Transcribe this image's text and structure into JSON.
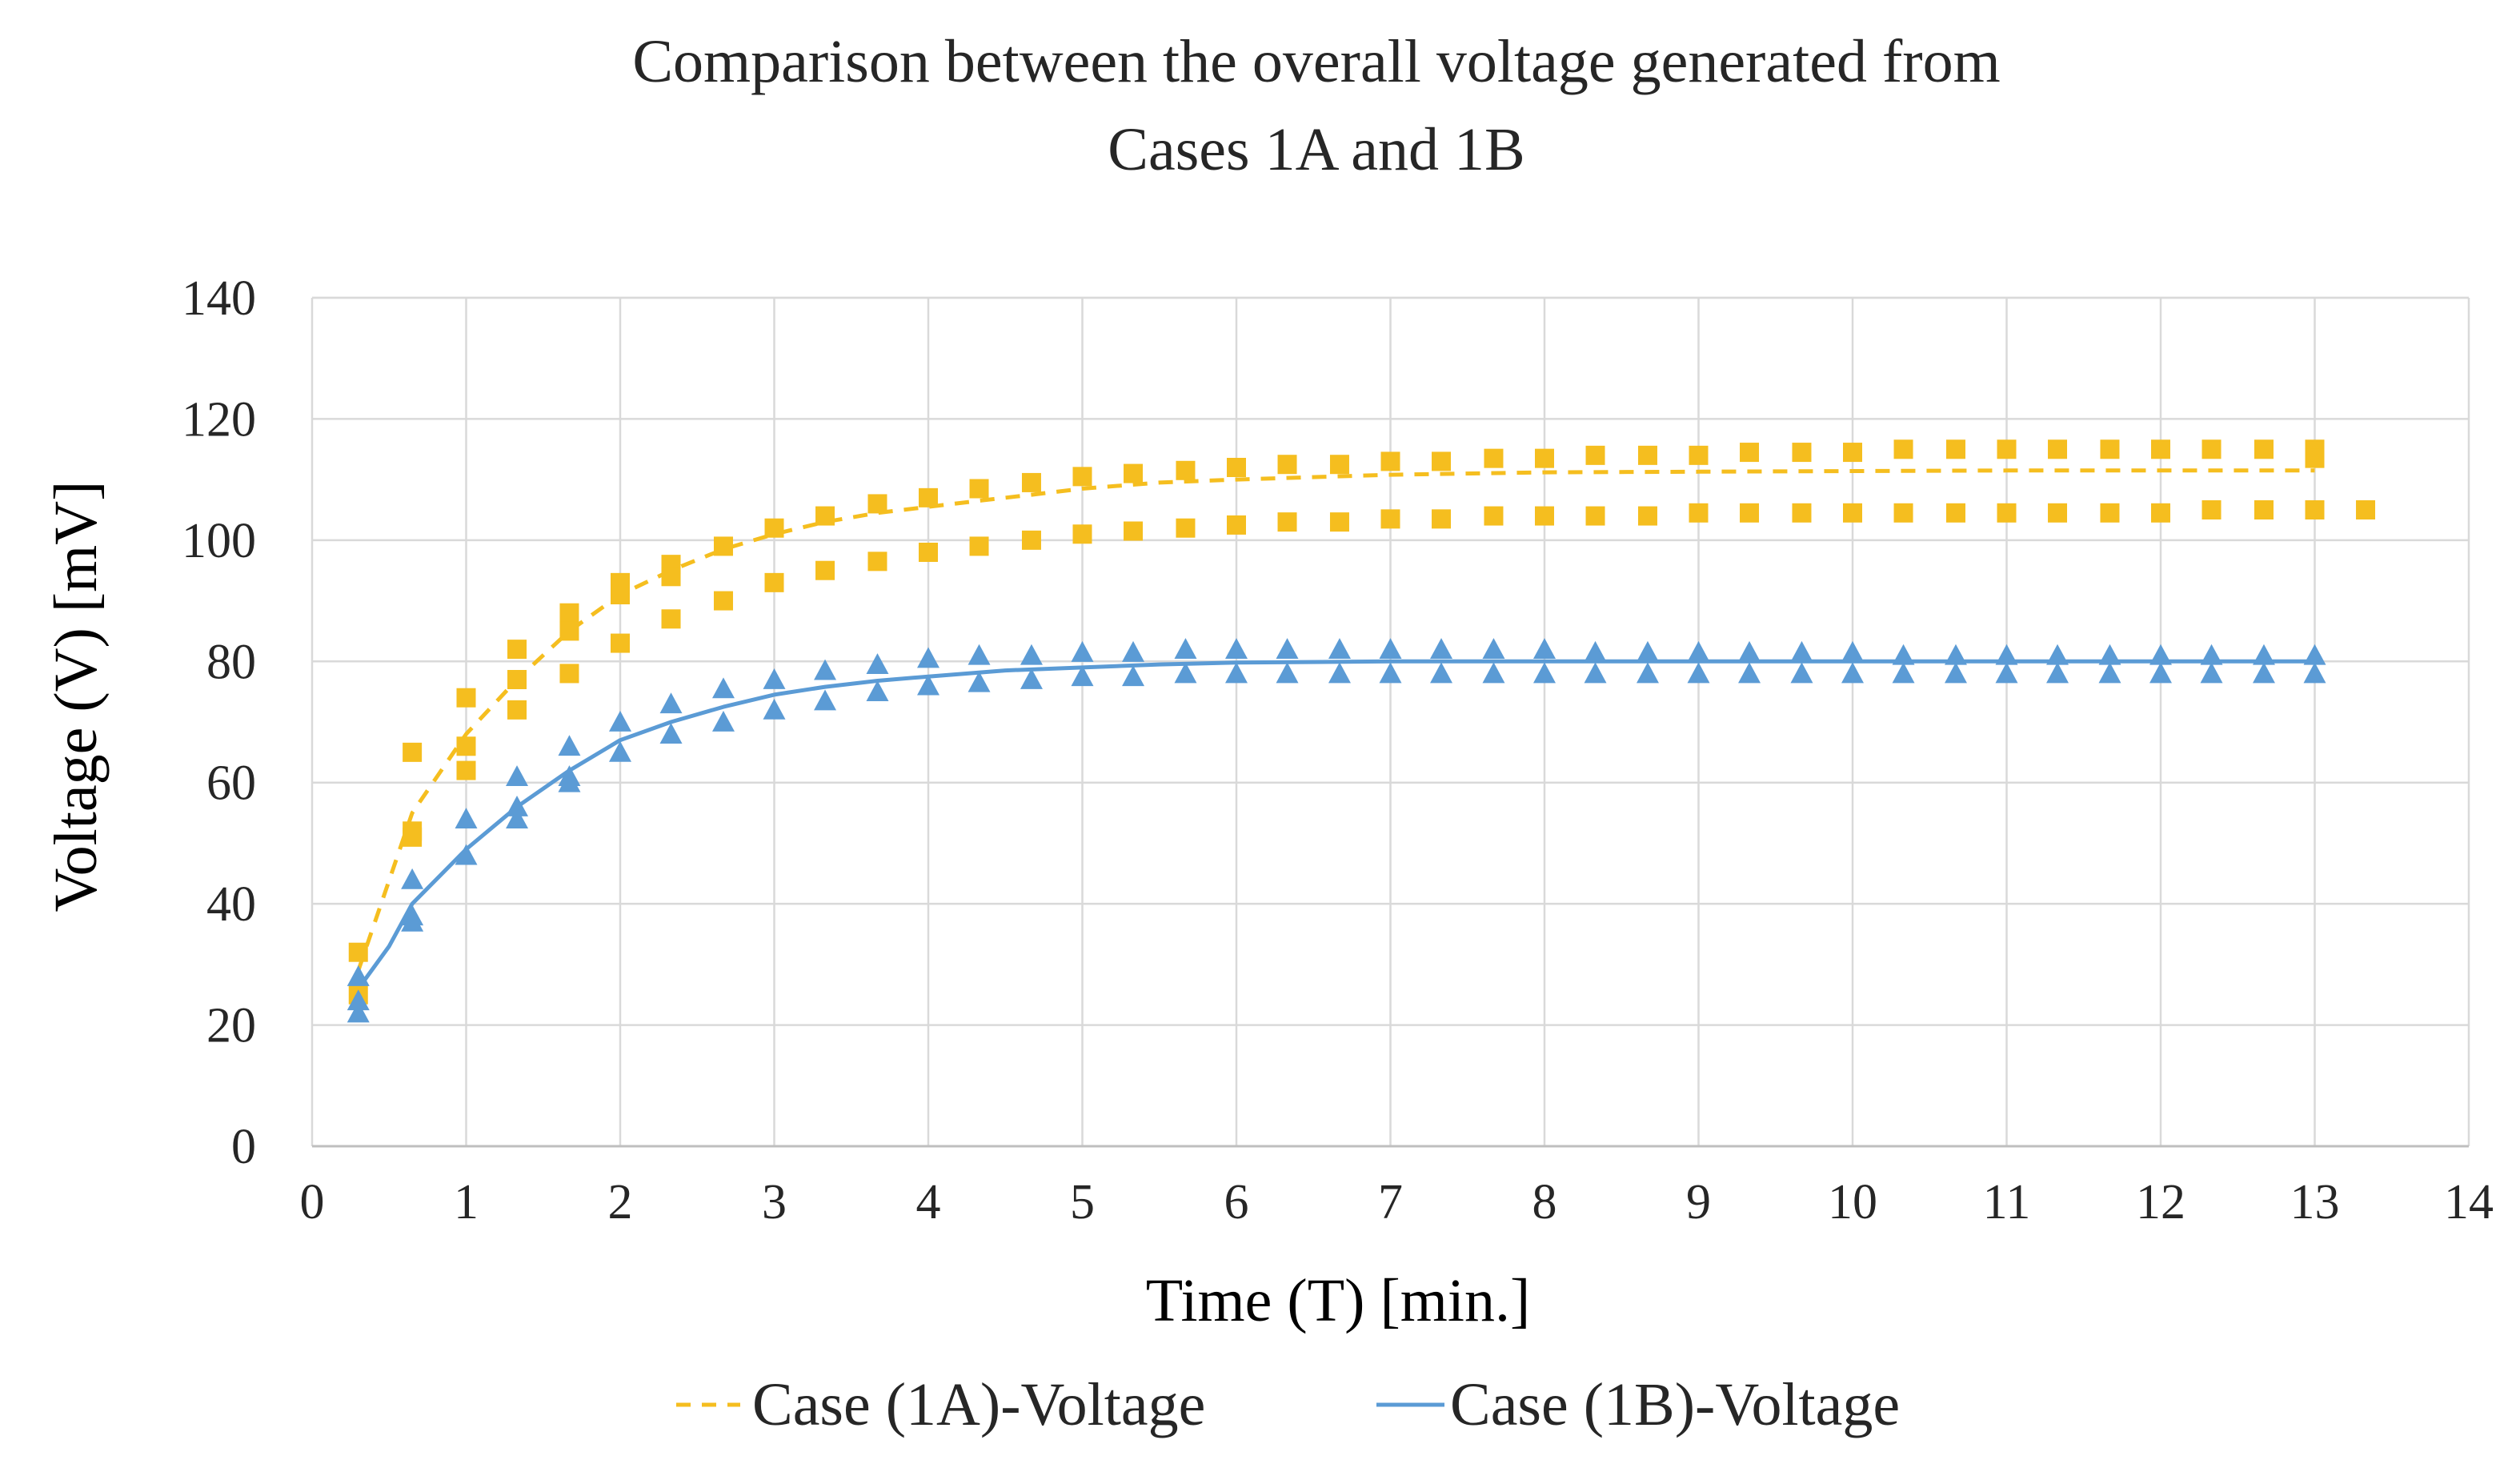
{
  "chart_data": {
    "type": "scatter",
    "title_lines": [
      "Comparison between the overall voltage generated from",
      "Cases 1A and 1B"
    ],
    "xlabel": "Time (T)  [min.]",
    "ylabel": "Voltage (V)  [mV]",
    "xlim": [
      0,
      14
    ],
    "ylim": [
      0,
      140
    ],
    "xticks": [
      "0",
      "1",
      "2",
      "3",
      "4",
      "5",
      "6",
      "7",
      "8",
      "9",
      "10",
      "11",
      "12",
      "13",
      "14"
    ],
    "yticks": [
      "0",
      "20",
      "40",
      "60",
      "80",
      "100",
      "120",
      "140"
    ],
    "grid": true,
    "legend_position": "bottom",
    "series": [
      {
        "name": "Case (1A)-Voltage",
        "color": "#f5be1f",
        "marker": "square",
        "trendline": "dashed",
        "trend_points": [
          [
            0.3,
            29
          ],
          [
            0.65,
            55
          ],
          [
            1,
            68
          ],
          [
            1.33,
            77
          ],
          [
            1.67,
            85
          ],
          [
            2,
            91
          ],
          [
            2.33,
            95
          ],
          [
            2.67,
            98.5
          ],
          [
            3,
            101
          ],
          [
            3.33,
            103
          ],
          [
            3.67,
            104.5
          ],
          [
            4,
            105.5
          ],
          [
            4.33,
            106.5
          ],
          [
            4.67,
            107.5
          ],
          [
            5,
            108.5
          ],
          [
            5.5,
            109.5
          ],
          [
            6,
            110
          ],
          [
            7,
            110.8
          ],
          [
            8,
            111.2
          ],
          [
            9,
            111.3
          ],
          [
            10,
            111.4
          ],
          [
            11,
            111.5
          ],
          [
            12,
            111.5
          ],
          [
            13,
            111.5
          ]
        ],
        "x": [
          0.3,
          0.3,
          0.65,
          0.65,
          0.65,
          1,
          1,
          1,
          1.33,
          1.33,
          1.33,
          1.67,
          1.67,
          1.67,
          2,
          2,
          2,
          2.33,
          2.33,
          2.33,
          2.67,
          2.67,
          3,
          3,
          3.33,
          3.33,
          3.67,
          3.67,
          4,
          4,
          4.33,
          4.33,
          4.67,
          4.67,
          5,
          5,
          5.33,
          5.33,
          5.67,
          5.67,
          6,
          6,
          6.33,
          6.33,
          6.67,
          6.67,
          7,
          7,
          7.33,
          7.33,
          7.67,
          7.67,
          8,
          8,
          8.33,
          8.33,
          8.67,
          8.67,
          9,
          9,
          9.33,
          9.33,
          9.67,
          9.67,
          10,
          10,
          10.33,
          10.33,
          10.67,
          10.67,
          11,
          11,
          11.33,
          11.33,
          11.67,
          11.67,
          12,
          12,
          12.33,
          12.33,
          12.67,
          12.67,
          13,
          13,
          13,
          13.33
        ],
        "y": [
          32,
          25,
          65,
          52,
          51,
          74,
          66,
          62,
          82,
          77,
          72,
          88,
          85,
          78,
          93,
          91,
          83,
          96,
          94,
          87,
          99,
          90,
          102,
          93,
          104,
          95,
          106,
          96.5,
          107,
          98,
          108.5,
          99,
          109.5,
          100,
          110.5,
          101,
          111,
          101.5,
          111.5,
          102,
          112,
          102.5,
          112.5,
          103,
          112.5,
          103,
          113,
          103.5,
          113,
          103.5,
          113.5,
          104,
          113.5,
          104,
          114,
          104,
          114,
          104,
          114,
          104.5,
          114.5,
          104.5,
          114.5,
          104.5,
          114.5,
          104.5,
          115,
          104.5,
          115,
          104.5,
          115,
          104.5,
          115,
          104.5,
          115,
          104.5,
          115,
          104.5,
          115,
          105,
          115,
          105,
          115,
          105,
          113.5,
          105
        ]
      },
      {
        "name": "Case (1B)-Voltage",
        "color": "#5b9bd5",
        "marker": "triangle",
        "trendline": "solid",
        "trend_points": [
          [
            0.3,
            26
          ],
          [
            0.5,
            33
          ],
          [
            0.65,
            40
          ],
          [
            1,
            49
          ],
          [
            1.33,
            56
          ],
          [
            1.67,
            62
          ],
          [
            2,
            67
          ],
          [
            2.33,
            70
          ],
          [
            2.67,
            72.5
          ],
          [
            3,
            74.5
          ],
          [
            3.33,
            75.8
          ],
          [
            3.67,
            76.8
          ],
          [
            4,
            77.5
          ],
          [
            4.5,
            78.5
          ],
          [
            5,
            79
          ],
          [
            5.5,
            79.5
          ],
          [
            6,
            79.8
          ],
          [
            7,
            80
          ],
          [
            8,
            80
          ],
          [
            9,
            80
          ],
          [
            10,
            80
          ],
          [
            11,
            80
          ],
          [
            12,
            80
          ],
          [
            13,
            80
          ]
        ],
        "x": [
          0.3,
          0.3,
          0.3,
          0.65,
          0.65,
          0.65,
          1,
          1,
          1.33,
          1.33,
          1.33,
          1.67,
          1.67,
          1.67,
          2,
          2,
          2.33,
          2.33,
          2.67,
          2.67,
          3,
          3,
          3.33,
          3.33,
          3.67,
          3.67,
          4,
          4,
          4.33,
          4.33,
          4.67,
          4.67,
          5,
          5,
          5.33,
          5.33,
          5.67,
          5.67,
          6,
          6,
          6.33,
          6.33,
          6.67,
          6.67,
          7,
          7,
          7.33,
          7.33,
          7.67,
          7.67,
          8,
          8,
          8.33,
          8.33,
          8.67,
          8.67,
          9,
          9,
          9.33,
          9.33,
          9.67,
          9.67,
          10,
          10,
          10.33,
          10.33,
          10.67,
          10.67,
          11,
          11,
          11.33,
          11.33,
          11.67,
          11.67,
          12,
          12,
          12.33,
          12.33,
          12.67,
          12.67,
          13,
          13
        ],
        "y": [
          28,
          24,
          22,
          44,
          38,
          37,
          54,
          48,
          61,
          56,
          54,
          66,
          61,
          60,
          70,
          65,
          73,
          68,
          75.5,
          70,
          77,
          72,
          78.5,
          73.5,
          79.5,
          75,
          80.5,
          76,
          81,
          76.5,
          81,
          77,
          81.5,
          77.5,
          81.5,
          77.5,
          82,
          78,
          82,
          78,
          82,
          78,
          82,
          78,
          82,
          78,
          82,
          78,
          82,
          78,
          82,
          78,
          81.5,
          78,
          81.5,
          78,
          81.5,
          78,
          81.5,
          78,
          81.5,
          78,
          81.5,
          78,
          81,
          78,
          81,
          78,
          81,
          78,
          81,
          78,
          81,
          78,
          81,
          78,
          81,
          78,
          81,
          78,
          81,
          78
        ]
      }
    ]
  }
}
